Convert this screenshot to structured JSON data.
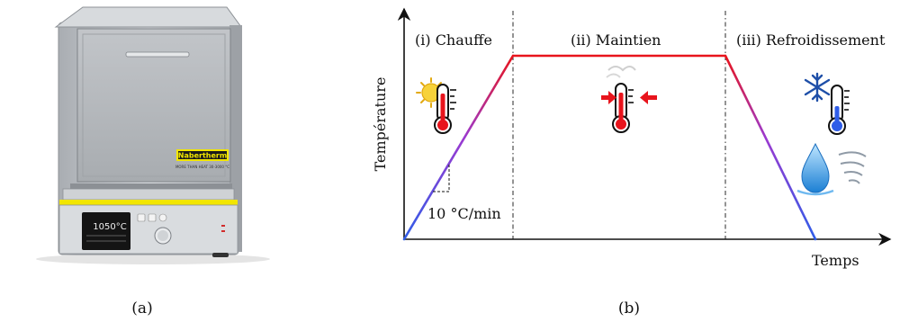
{
  "panels": {
    "a": {
      "caption": "(a)"
    },
    "b": {
      "caption": "(b)"
    }
  },
  "furnace": {
    "brand": "Nabertherm",
    "tagline": "MORE THAN HEAT 30-3000 °C",
    "display_value": "1050°C",
    "body_color": "#c9ccd0",
    "door_color": "#b8bbbf",
    "accent_color": "#f2e600"
  },
  "diagram": {
    "y_axis_label": "Température",
    "x_axis_label": "Temps",
    "phases": [
      {
        "label": "(i) Chauffe"
      },
      {
        "label": "(ii) Maintien"
      },
      {
        "label": "(iii) Refroidissement"
      }
    ],
    "rate_label": "10 °C/min",
    "hot_color": "#e8141c",
    "cold_color": "#2f5de8",
    "icons": [
      "sun-thermometer-icon",
      "hold-thermometer-icon",
      "snow-thermometer-icon",
      "water-wind-icon"
    ]
  }
}
